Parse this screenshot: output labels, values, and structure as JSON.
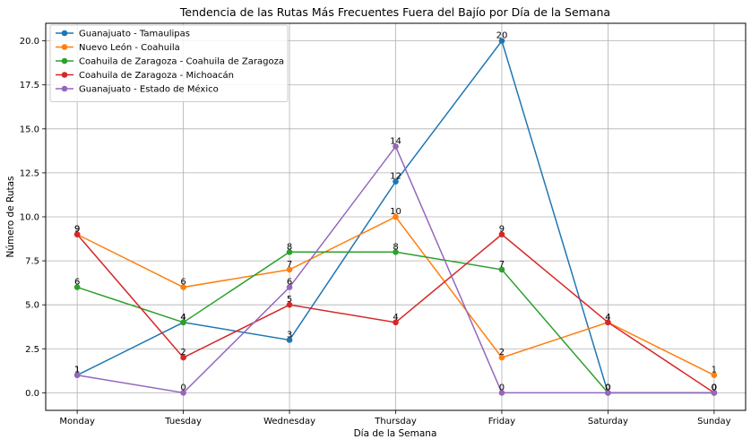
{
  "chart_data": {
    "type": "line",
    "title": "Tendencia de las Rutas Más Frecuentes Fuera del Bajío por Día de la Semana",
    "xlabel": "Día de la Semana",
    "ylabel": "Número de Rutas",
    "categories": [
      "Monday",
      "Tuesday",
      "Wednesday",
      "Thursday",
      "Friday",
      "Saturday",
      "Sunday"
    ],
    "ylim": [
      -1.0,
      21.0
    ],
    "yticks": [
      "0.0",
      "2.5",
      "5.0",
      "7.5",
      "10.0",
      "12.5",
      "15.0",
      "17.5",
      "20.0"
    ],
    "grid": true,
    "legend_position": "top-left",
    "series": [
      {
        "name": "Guanajuato - Tamaulipas",
        "color": "#1f77b4",
        "values": [
          1,
          4,
          3,
          12,
          20,
          0,
          0
        ]
      },
      {
        "name": "Nuevo León - Coahuila",
        "color": "#ff7f0e",
        "values": [
          9,
          6,
          7,
          10,
          2,
          4,
          1
        ]
      },
      {
        "name": "Coahuila de Zaragoza - Coahuila de Zaragoza",
        "color": "#2ca02c",
        "values": [
          6,
          4,
          8,
          8,
          7,
          0,
          0
        ]
      },
      {
        "name": "Coahuila de Zaragoza - Michoacán",
        "color": "#d62728",
        "values": [
          9,
          2,
          5,
          4,
          9,
          4,
          0
        ]
      },
      {
        "name": "Guanajuato - Estado de México",
        "color": "#9467bd",
        "values": [
          1,
          0,
          6,
          14,
          0,
          0,
          0
        ]
      }
    ]
  }
}
